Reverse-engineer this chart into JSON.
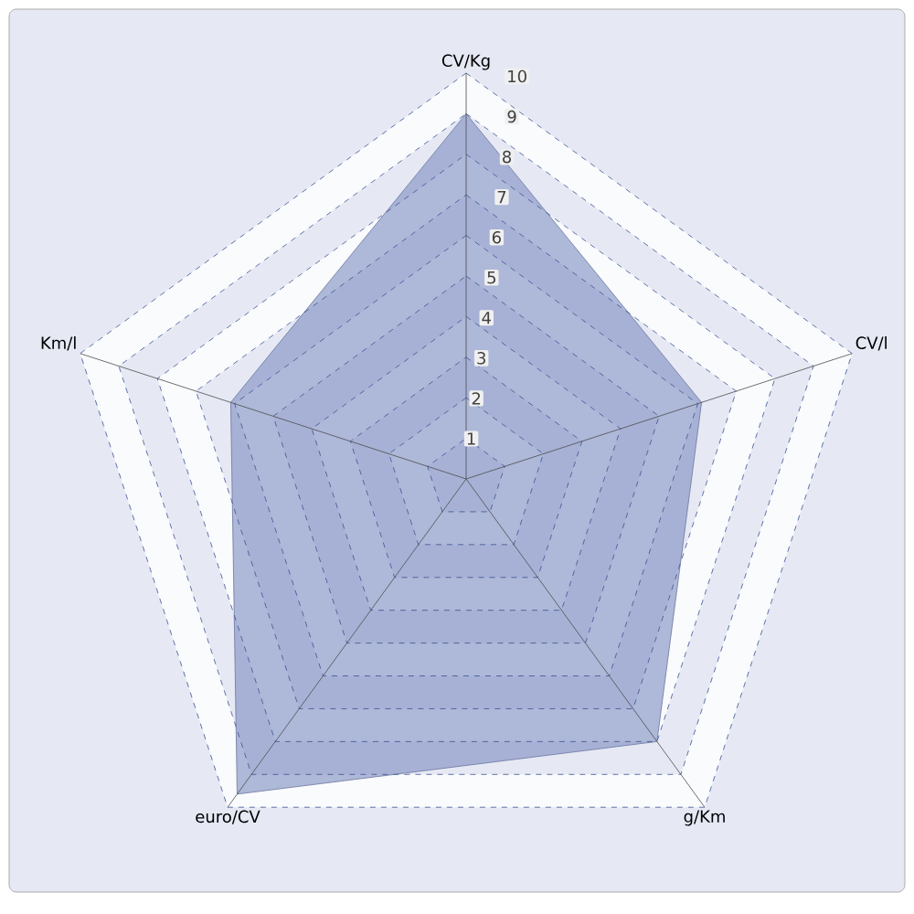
{
  "chart_data": {
    "type": "radar",
    "categories": [
      "CV/Kg",
      "CV/l",
      "g/Km",
      "euro/CV",
      "Km/l"
    ],
    "series": [
      {
        "color": "#8594c4",
        "values": [
          9,
          6.1,
          8,
          9.6,
          6.1
        ]
      }
    ],
    "ylim": [
      0,
      10
    ],
    "yticks": [
      1,
      2,
      3,
      4,
      5,
      6,
      7,
      8,
      9,
      10
    ],
    "grid": true,
    "marker": "none"
  }
}
